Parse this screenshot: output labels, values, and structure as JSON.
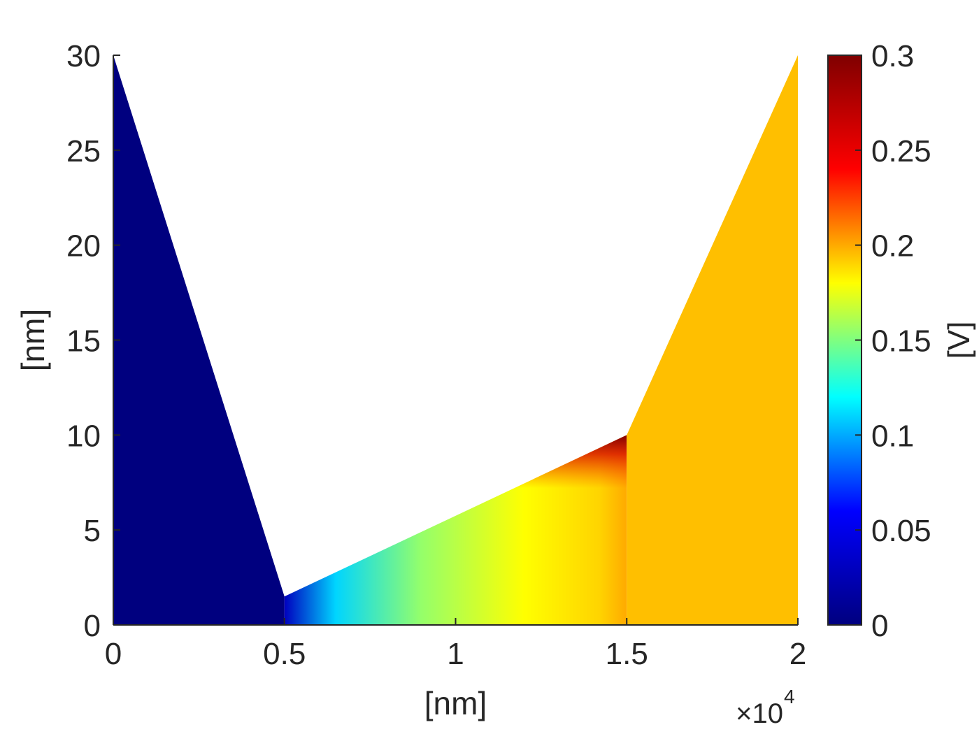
{
  "chart_data": {
    "type": "heatmap",
    "title": "",
    "xlabel": "[nm]",
    "ylabel": "[nm]",
    "x_multiplier_label": "×10",
    "x_multiplier_exponent": "4",
    "xlim": [
      0,
      20000
    ],
    "ylim": [
      0,
      30
    ],
    "x_ticks": [
      0,
      5000,
      10000,
      15000,
      20000
    ],
    "x_tick_labels": [
      "0",
      "0.5",
      "1",
      "1.5",
      "2"
    ],
    "y_ticks": [
      0,
      5,
      10,
      15,
      20,
      25,
      30
    ],
    "y_tick_labels": [
      "0",
      "5",
      "10",
      "15",
      "20",
      "25",
      "30"
    ],
    "grid": false,
    "colormap": "jet",
    "colorbar": {
      "label": "[V]",
      "range": [
        0,
        0.3
      ],
      "ticks": [
        0,
        0.05,
        0.1,
        0.15,
        0.2,
        0.25,
        0.3
      ],
      "tick_labels": [
        "0",
        "0.05",
        "0.1",
        "0.15",
        "0.2",
        "0.25",
        "0.3"
      ],
      "colors": [
        "#00007f",
        "#0000ff",
        "#00ffff",
        "#ffff00",
        "#ff0000",
        "#7f0000"
      ]
    },
    "regions": [
      {
        "name": "left",
        "boundary": [
          [
            0,
            0
          ],
          [
            0,
            30
          ],
          [
            5000,
            1.5
          ],
          [
            5000,
            0
          ]
        ],
        "potential": 0
      },
      {
        "name": "middle",
        "boundary": [
          [
            5000,
            0
          ],
          [
            5000,
            1.5
          ],
          [
            15000,
            10
          ],
          [
            15000,
            0
          ]
        ],
        "potential": "gradient",
        "gradient_stops": [
          {
            "x": 5000,
            "v": 0.03
          },
          {
            "x": 6500,
            "v": 0.11
          },
          {
            "x": 9000,
            "v": 0.155
          },
          {
            "x": 12000,
            "v": 0.18
          },
          {
            "x": 14200,
            "v": 0.19
          },
          {
            "x": 15000,
            "v": 0.2
          }
        ],
        "edge_potential": 0.3
      },
      {
        "name": "right",
        "boundary": [
          [
            15000,
            0
          ],
          [
            15000,
            10
          ],
          [
            20000,
            30
          ],
          [
            20000,
            0
          ]
        ],
        "potential": 0.195
      }
    ]
  }
}
